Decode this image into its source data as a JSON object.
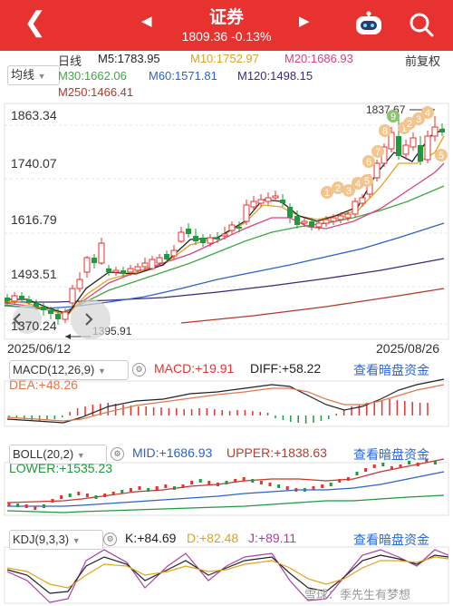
{
  "header": {
    "title": "证券",
    "subtitle": "1809.36 -0.13%",
    "back_icon": "chevron-left-icon",
    "prev_icon": "triangle-left-icon",
    "next_icon": "triangle-right-icon",
    "robot_icon": "robot-icon",
    "search_icon": "search-icon",
    "background": "#e8322f"
  },
  "period_label": "日线",
  "ma_type": "均线",
  "adjust_label": "前复权",
  "ma": [
    {
      "label": "M5:1783.95",
      "color": "#222222"
    },
    {
      "label": "M10:1752.97",
      "color": "#e2a31b"
    },
    {
      "label": "M20:1686.93",
      "color": "#d9427f"
    },
    {
      "label": "M30:1662.06",
      "color": "#3fa844"
    },
    {
      "label": "M60:1571.81",
      "color": "#2c63c8"
    },
    {
      "label": "M120:1498.15",
      "color": "#3b2a7a"
    },
    {
      "label": "M250:1466.41",
      "color": "#b23a2a"
    }
  ],
  "price_axis": [
    "1863.34",
    "1740.07",
    "1616.79",
    "1493.51",
    "1370.24"
  ],
  "date_start": "2025/06/12",
  "date_end": "2025/08/26",
  "high_marker": "1837.67",
  "low_marker": "1395.91",
  "macd": {
    "selector": "MACD(12,26,9)",
    "macd": "MACD:+19.91",
    "diff": "DIFF:+58.22",
    "dea": "DEA:+48.26",
    "link": "查看暗盘资金"
  },
  "boll": {
    "selector": "BOLL(20,2)",
    "mid": "MID:+1686.93",
    "upper": "UPPER:+1838.63",
    "lower": "LOWER:+1535.23",
    "link": "查看暗盘资金"
  },
  "kdj": {
    "selector": "KDJ(9,3,3)",
    "k": "K:+84.69",
    "d": "D:+82.48",
    "j": "J:+89.11",
    "link": "查看暗盘资金"
  },
  "watermark": "雪球：季先生有梦想",
  "colors": {
    "up": "#e8322f",
    "down": "#1f9a3c",
    "link": "#2a6ad6"
  }
}
